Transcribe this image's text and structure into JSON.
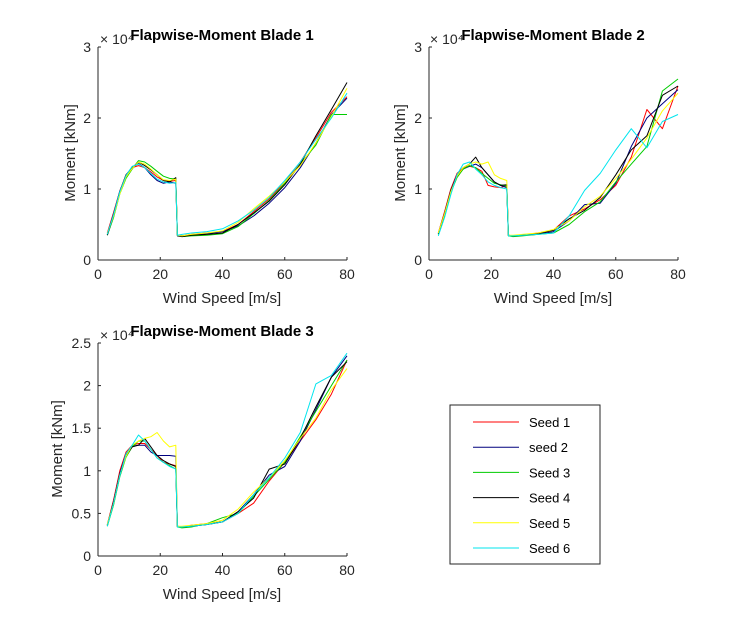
{
  "figure": {
    "background": "#ffffff"
  },
  "chart_data": [
    {
      "type": "line",
      "title": "Flapwise-Moment Blade 1",
      "xlabel": "Wind Speed [m/s]",
      "ylabel": "Moment [kNm]",
      "exponent": "× 10⁴",
      "xlim": [
        0,
        80
      ],
      "ylim": [
        0,
        3
      ],
      "x_ticks": [
        0,
        20,
        40,
        60,
        80
      ],
      "y_ticks": [
        0,
        1,
        2,
        3
      ],
      "x_tick_labels": [
        "0",
        "20",
        "40",
        "60",
        "80"
      ],
      "y_tick_labels": [
        "0",
        "1",
        "2",
        "3"
      ],
      "x": [
        3,
        5,
        7,
        9,
        11,
        13,
        15,
        17,
        19,
        21,
        23,
        25,
        25.5,
        27,
        30,
        35,
        40,
        45,
        50,
        55,
        60,
        65,
        70,
        75,
        80
      ],
      "series": [
        {
          "name": "Seed 1",
          "values": [
            0.38,
            0.67,
            0.97,
            1.2,
            1.3,
            1.33,
            1.3,
            1.24,
            1.17,
            1.12,
            1.11,
            1.12,
            0.35,
            0.34,
            0.36,
            0.38,
            0.4,
            0.5,
            0.68,
            0.86,
            1.1,
            1.38,
            1.72,
            2.08,
            2.3
          ]
        },
        {
          "name": "seed 2",
          "values": [
            0.36,
            0.65,
            0.97,
            1.18,
            1.3,
            1.36,
            1.3,
            1.2,
            1.12,
            1.08,
            1.1,
            1.08,
            0.35,
            0.34,
            0.35,
            0.37,
            0.4,
            0.48,
            0.62,
            0.8,
            1.02,
            1.3,
            1.65,
            2.05,
            2.28
          ]
        },
        {
          "name": "Seed 3",
          "values": [
            0.35,
            0.6,
            0.93,
            1.15,
            1.28,
            1.4,
            1.38,
            1.32,
            1.25,
            1.18,
            1.15,
            1.14,
            0.35,
            0.33,
            0.34,
            0.35,
            0.37,
            0.47,
            0.65,
            0.84,
            1.08,
            1.35,
            1.62,
            2.05,
            2.05
          ]
        },
        {
          "name": "Seed 4",
          "values": [
            0.35,
            0.63,
            0.96,
            1.2,
            1.3,
            1.38,
            1.33,
            1.27,
            1.2,
            1.12,
            1.1,
            1.16,
            0.34,
            0.33,
            0.35,
            0.36,
            0.38,
            0.5,
            0.66,
            0.83,
            1.06,
            1.35,
            1.75,
            2.12,
            2.5
          ]
        },
        {
          "name": "Seed 5",
          "values": [
            0.37,
            0.62,
            0.93,
            1.17,
            1.29,
            1.38,
            1.35,
            1.28,
            1.2,
            1.13,
            1.12,
            1.14,
            0.35,
            0.34,
            0.36,
            0.38,
            0.41,
            0.53,
            0.72,
            0.9,
            1.1,
            1.33,
            1.65,
            2.02,
            2.42
          ]
        },
        {
          "name": "Seed 6",
          "values": [
            0.36,
            0.64,
            0.96,
            1.19,
            1.32,
            1.35,
            1.3,
            1.22,
            1.14,
            1.1,
            1.08,
            1.09,
            0.35,
            0.36,
            0.38,
            0.4,
            0.44,
            0.55,
            0.7,
            0.88,
            1.12,
            1.38,
            1.7,
            2.0,
            2.35
          ]
        }
      ]
    },
    {
      "type": "line",
      "title": "Flapwise-Moment Blade 2",
      "xlabel": "Wind Speed [m/s]",
      "ylabel": "Moment [kNm]",
      "exponent": "× 10⁴",
      "xlim": [
        0,
        80
      ],
      "ylim": [
        0,
        3
      ],
      "x_ticks": [
        0,
        20,
        40,
        60,
        80
      ],
      "y_ticks": [
        0,
        1,
        2,
        3
      ],
      "x_tick_labels": [
        "0",
        "20",
        "40",
        "60",
        "80"
      ],
      "y_tick_labels": [
        "0",
        "1",
        "2",
        "3"
      ],
      "x": [
        3,
        5,
        7,
        9,
        11,
        13,
        15,
        17,
        19,
        21,
        23,
        25,
        25.5,
        27,
        30,
        35,
        40,
        45,
        50,
        55,
        60,
        65,
        70,
        75,
        80
      ],
      "series": [
        {
          "name": "Seed 1",
          "values": [
            0.38,
            0.68,
            1.0,
            1.22,
            1.3,
            1.32,
            1.3,
            1.25,
            1.05,
            1.03,
            1.02,
            1.05,
            0.35,
            0.34,
            0.35,
            0.38,
            0.42,
            0.62,
            0.72,
            0.85,
            1.05,
            1.45,
            2.12,
            1.85,
            2.45
          ]
        },
        {
          "name": "seed 2",
          "values": [
            0.37,
            0.66,
            0.98,
            1.2,
            1.28,
            1.32,
            1.35,
            1.3,
            1.2,
            1.1,
            1.05,
            1.02,
            0.34,
            0.34,
            0.35,
            0.36,
            0.4,
            0.55,
            0.78,
            0.8,
            1.08,
            1.6,
            2.0,
            2.2,
            2.4
          ]
        },
        {
          "name": "Seed 3",
          "values": [
            0.36,
            0.62,
            0.95,
            1.16,
            1.28,
            1.33,
            1.3,
            1.22,
            1.15,
            1.08,
            1.06,
            1.04,
            0.34,
            0.33,
            0.34,
            0.36,
            0.38,
            0.5,
            0.68,
            0.82,
            1.1,
            1.35,
            1.6,
            2.38,
            2.55
          ]
        },
        {
          "name": "Seed 4",
          "values": [
            0.37,
            0.65,
            0.97,
            1.18,
            1.3,
            1.35,
            1.45,
            1.3,
            1.2,
            1.1,
            1.05,
            1.06,
            0.35,
            0.34,
            0.35,
            0.37,
            0.42,
            0.58,
            0.7,
            0.88,
            1.2,
            1.55,
            1.75,
            2.32,
            2.45
          ]
        },
        {
          "name": "Seed 5",
          "values": [
            0.38,
            0.65,
            0.96,
            1.18,
            1.3,
            1.35,
            1.38,
            1.35,
            1.38,
            1.2,
            1.15,
            1.12,
            0.35,
            0.35,
            0.36,
            0.38,
            0.43,
            0.55,
            0.75,
            0.9,
            1.15,
            1.42,
            1.72,
            2.1,
            2.35
          ]
        },
        {
          "name": "Seed 6",
          "values": [
            0.34,
            0.6,
            0.92,
            1.2,
            1.35,
            1.38,
            1.28,
            1.2,
            1.1,
            1.05,
            1.02,
            1.0,
            0.34,
            0.34,
            0.35,
            0.36,
            0.38,
            0.62,
            0.98,
            1.22,
            1.55,
            1.85,
            1.58,
            1.95,
            2.05
          ]
        }
      ]
    },
    {
      "type": "line",
      "title": "Flapwise-Moment Blade 3",
      "xlabel": "Wind Speed [m/s]",
      "ylabel": "Moment [kNm]",
      "exponent": "× 10⁴",
      "xlim": [
        0,
        80
      ],
      "ylim": [
        0,
        2.5
      ],
      "x_ticks": [
        0,
        20,
        40,
        60,
        80
      ],
      "y_ticks": [
        0,
        0.5,
        1,
        1.5,
        2,
        2.5
      ],
      "x_tick_labels": [
        "0",
        "20",
        "40",
        "60",
        "80"
      ],
      "y_tick_labels": [
        "0",
        "0.5",
        "1",
        "1.5",
        "2",
        "2.5"
      ],
      "x": [
        3,
        5,
        7,
        9,
        11,
        13,
        15,
        17,
        19,
        21,
        23,
        25,
        25.5,
        27,
        30,
        35,
        40,
        45,
        50,
        55,
        60,
        65,
        70,
        75,
        80
      ],
      "series": [
        {
          "name": "Seed 1",
          "values": [
            0.37,
            0.66,
            1.0,
            1.22,
            1.3,
            1.32,
            1.32,
            1.25,
            1.18,
            1.1,
            1.08,
            1.06,
            0.35,
            0.34,
            0.36,
            0.38,
            0.4,
            0.5,
            0.62,
            0.88,
            1.1,
            1.35,
            1.6,
            1.9,
            2.3
          ]
        },
        {
          "name": "seed 2",
          "values": [
            0.36,
            0.64,
            0.97,
            1.2,
            1.29,
            1.3,
            1.3,
            1.22,
            1.18,
            1.18,
            1.18,
            1.17,
            0.34,
            0.34,
            0.35,
            0.37,
            0.4,
            0.52,
            0.72,
            0.95,
            1.05,
            1.35,
            1.72,
            2.1,
            2.35
          ]
        },
        {
          "name": "Seed 3",
          "values": [
            0.35,
            0.6,
            0.93,
            1.16,
            1.28,
            1.35,
            1.35,
            1.25,
            1.15,
            1.1,
            1.06,
            1.02,
            0.34,
            0.33,
            0.34,
            0.38,
            0.45,
            0.5,
            0.7,
            0.9,
            1.1,
            1.4,
            1.7,
            2.0,
            2.3
          ]
        },
        {
          "name": "Seed 4",
          "values": [
            0.36,
            0.63,
            0.95,
            1.18,
            1.28,
            1.3,
            1.38,
            1.28,
            1.18,
            1.12,
            1.08,
            1.05,
            0.35,
            0.34,
            0.35,
            0.37,
            0.4,
            0.52,
            0.68,
            1.02,
            1.08,
            1.38,
            1.75,
            2.1,
            2.28
          ]
        },
        {
          "name": "Seed 5",
          "values": [
            0.37,
            0.62,
            0.95,
            1.17,
            1.3,
            1.35,
            1.38,
            1.4,
            1.45,
            1.35,
            1.28,
            1.3,
            0.35,
            0.35,
            0.36,
            0.38,
            0.42,
            0.55,
            0.75,
            0.92,
            1.12,
            1.38,
            1.62,
            1.95,
            2.2
          ]
        },
        {
          "name": "Seed 6",
          "values": [
            0.35,
            0.62,
            0.94,
            1.2,
            1.3,
            1.42,
            1.35,
            1.25,
            1.15,
            1.1,
            1.05,
            1.02,
            0.34,
            0.34,
            0.35,
            0.37,
            0.4,
            0.5,
            0.72,
            0.92,
            1.15,
            1.45,
            2.02,
            2.12,
            2.38
          ]
        }
      ]
    }
  ],
  "legend": {
    "placement": "lower-right",
    "entries": [
      {
        "label": "Seed 1",
        "color": "#ff0000"
      },
      {
        "label": "seed 2",
        "color": "#00007f"
      },
      {
        "label": "Seed 3",
        "color": "#00cc00"
      },
      {
        "label": "Seed 4",
        "color": "#000000"
      },
      {
        "label": "Seed 5",
        "color": "#ffff00"
      },
      {
        "label": "Seed 6",
        "color": "#00e5ee"
      }
    ]
  }
}
